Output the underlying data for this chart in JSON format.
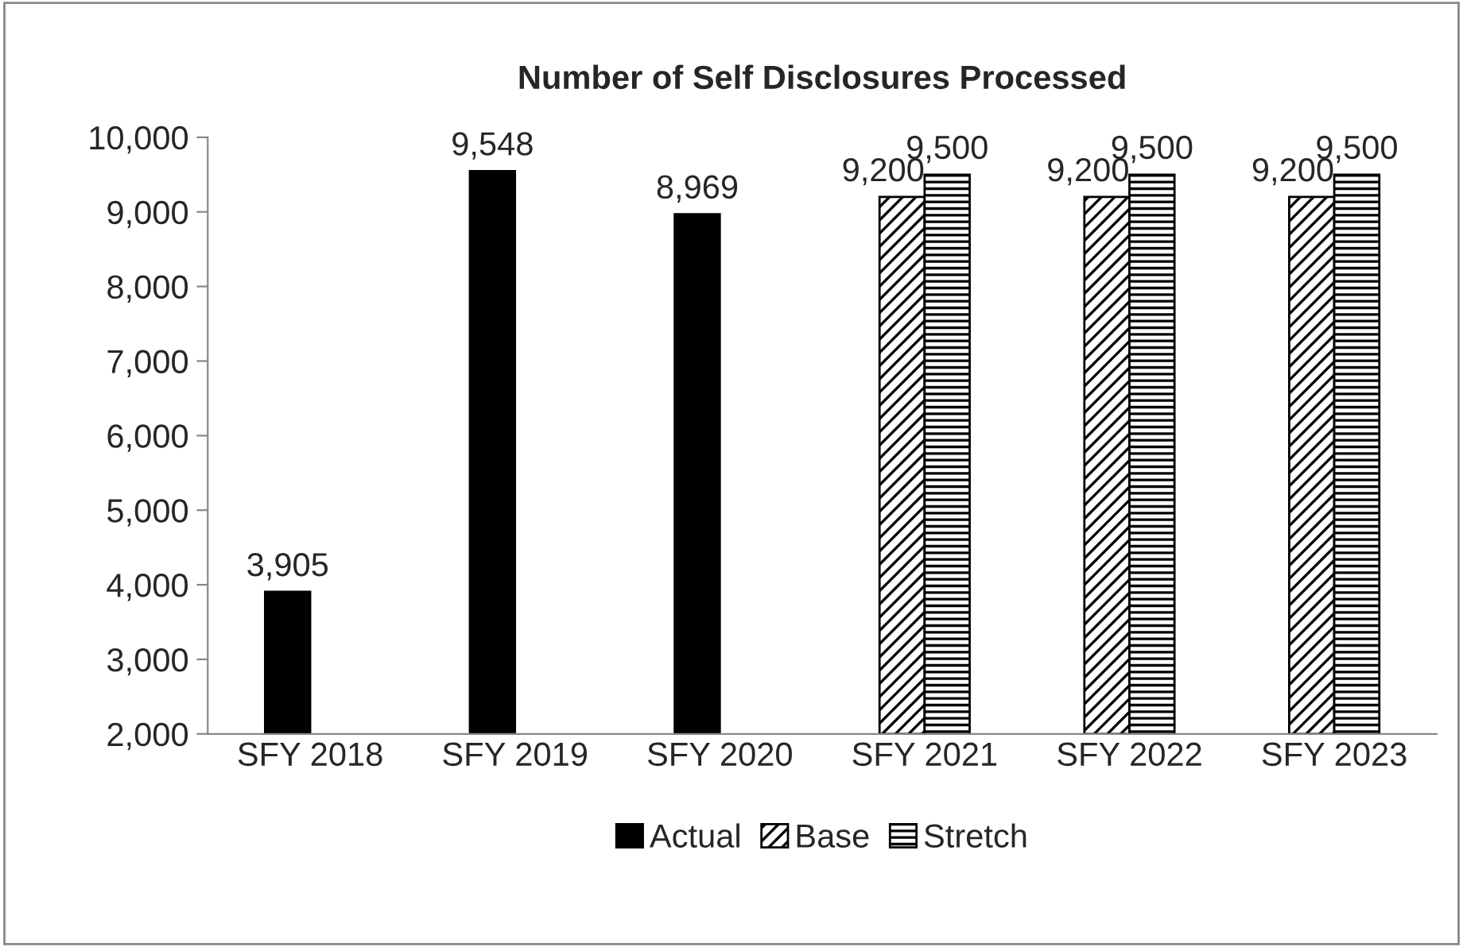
{
  "chart_data": {
    "type": "bar",
    "title": "Number of Self Disclosures Processed",
    "categories": [
      "SFY 2018",
      "SFY 2019",
      "SFY 2020",
      "SFY 2021",
      "SFY 2022",
      "SFY 2023"
    ],
    "series": [
      {
        "name": "Actual",
        "color": "#000000",
        "values": [
          3905,
          9548,
          8969,
          null,
          null,
          null
        ],
        "value_labels": [
          "3,905",
          "9,548",
          "8,969",
          null,
          null,
          null
        ]
      },
      {
        "name": "Base",
        "color": "#000000",
        "values": [
          null,
          null,
          null,
          9200,
          9200,
          9200
        ],
        "value_labels": [
          null,
          null,
          null,
          "9,200",
          "9,200",
          "9,200"
        ]
      },
      {
        "name": "Stretch",
        "color": "#000000",
        "values": [
          null,
          null,
          null,
          9500,
          9500,
          9500
        ],
        "value_labels": [
          null,
          null,
          null,
          "9,500",
          "9,500",
          "9,500"
        ]
      }
    ],
    "ylim": [
      2000,
      10000
    ],
    "yticks": [
      {
        "value": 2000,
        "label": "2,000"
      },
      {
        "value": 3000,
        "label": "3,000"
      },
      {
        "value": 4000,
        "label": "4,000"
      },
      {
        "value": 5000,
        "label": "5,000"
      },
      {
        "value": 6000,
        "label": "6,000"
      },
      {
        "value": 7000,
        "label": "7,000"
      },
      {
        "value": 8000,
        "label": "8,000"
      },
      {
        "value": 9000,
        "label": "9,000"
      },
      {
        "value": 10000,
        "label": "10,000"
      }
    ],
    "grid": false,
    "legend": "bottom"
  }
}
